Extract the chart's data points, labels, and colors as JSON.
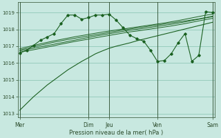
{
  "background_color": "#c8e8e0",
  "grid_color": "#90c8b8",
  "line_color": "#1a6020",
  "vline_color": "#2a4a2a",
  "title": "Pression niveau de la mer( hPa )",
  "ylim": [
    1012.8,
    1019.6
  ],
  "xlim": [
    -0.3,
    28.3
  ],
  "yticks": [
    1013,
    1014,
    1015,
    1016,
    1017,
    1018,
    1019
  ],
  "day_labels": [
    "Mer",
    "Dim",
    "Jeu",
    "Ven",
    "Sam"
  ],
  "day_positions": [
    0,
    10,
    13,
    20,
    28
  ],
  "n_points": 29,
  "smooth_lines": [
    [
      1016.65,
      1016.72,
      1016.79,
      1016.87,
      1016.95,
      1017.03,
      1017.12,
      1017.2,
      1017.28,
      1017.35,
      1017.42,
      1017.5,
      1017.57,
      1017.64,
      1017.71,
      1017.78,
      1017.85,
      1017.9,
      1017.96,
      1018.02,
      1018.08,
      1018.14,
      1018.2,
      1018.27,
      1018.34,
      1018.42,
      1018.5,
      1018.58,
      1018.65
    ],
    [
      1016.72,
      1016.8,
      1016.88,
      1016.96,
      1017.04,
      1017.12,
      1017.2,
      1017.28,
      1017.36,
      1017.44,
      1017.52,
      1017.6,
      1017.67,
      1017.74,
      1017.81,
      1017.88,
      1017.95,
      1018.0,
      1018.06,
      1018.12,
      1018.18,
      1018.24,
      1018.3,
      1018.37,
      1018.44,
      1018.52,
      1018.6,
      1018.68,
      1018.75
    ],
    [
      1016.78,
      1016.87,
      1016.97,
      1017.06,
      1017.15,
      1017.24,
      1017.32,
      1017.4,
      1017.47,
      1017.54,
      1017.61,
      1017.68,
      1017.75,
      1017.82,
      1017.89,
      1017.96,
      1018.02,
      1018.08,
      1018.14,
      1018.2,
      1018.26,
      1018.32,
      1018.38,
      1018.44,
      1018.5,
      1018.56,
      1018.62,
      1018.7,
      1018.78
    ],
    [
      1016.85,
      1016.95,
      1017.05,
      1017.14,
      1017.23,
      1017.32,
      1017.4,
      1017.48,
      1017.56,
      1017.63,
      1017.7,
      1017.77,
      1017.84,
      1017.9,
      1017.96,
      1018.02,
      1018.08,
      1018.14,
      1018.2,
      1018.26,
      1018.32,
      1018.38,
      1018.45,
      1018.52,
      1018.6,
      1018.68,
      1018.76,
      1018.84,
      1018.9
    ]
  ],
  "start_line": [
    1013.2,
    1013.6,
    1014.0,
    1014.35,
    1014.7,
    1015.0,
    1015.3,
    1015.6,
    1015.85,
    1016.1,
    1016.32,
    1016.55,
    1016.72,
    1016.88,
    1017.0,
    1017.1,
    1017.2,
    1017.32,
    1017.42,
    1017.52,
    1017.62,
    1017.72,
    1017.82,
    1017.92,
    1018.02,
    1018.12,
    1018.22,
    1018.32,
    1018.42
  ],
  "marker_line": [
    1016.6,
    1016.75,
    1017.05,
    1017.35,
    1017.55,
    1017.75,
    1018.35,
    1018.85,
    1018.85,
    1018.6,
    1018.7,
    1018.85,
    1018.85,
    1018.9,
    1018.55,
    1018.1,
    1017.65,
    1017.45,
    1017.3,
    1016.75,
    1016.1,
    1016.15,
    1016.55,
    1017.2,
    1017.75,
    1016.1,
    1016.45,
    1019.05,
    1019.0
  ]
}
